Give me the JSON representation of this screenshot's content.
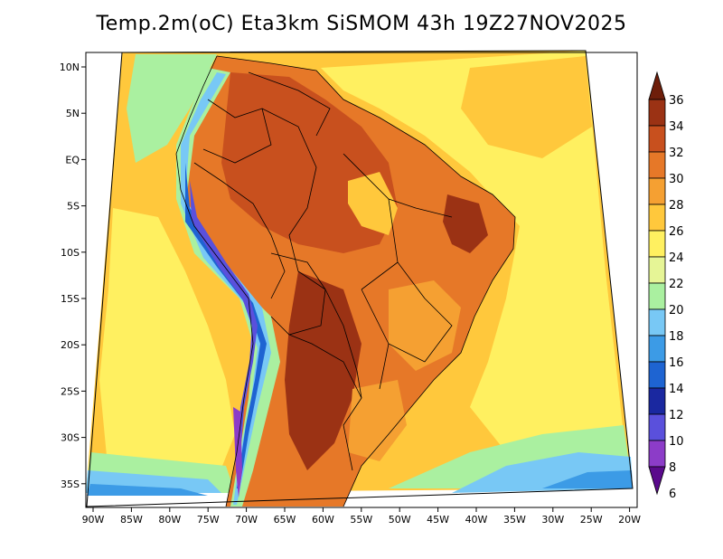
{
  "title": "Temp.2m(oC) Eta3km SiSMOM 43h 19Z27NOV2025",
  "map": {
    "variable": "2 m air temperature",
    "units": "oC",
    "lon_ticks": [
      "90W",
      "85W",
      "80W",
      "75W",
      "70W",
      "65W",
      "60W",
      "55W",
      "50W",
      "45W",
      "40W",
      "35W",
      "30W",
      "25W",
      "20W"
    ],
    "lat_ticks": [
      "10N",
      "5N",
      "EQ",
      "5S",
      "10S",
      "15S",
      "20S",
      "25S",
      "30S",
      "35S"
    ]
  },
  "colorbar": {
    "labels": [
      "36",
      "34",
      "32",
      "30",
      "28",
      "26",
      "24",
      "22",
      "20",
      "18",
      "16",
      "14",
      "12",
      "10",
      "8",
      "6"
    ],
    "colors": {
      "t6_8": "#5a0a8c",
      "t8_10": "#8c3cc8",
      "t10_12": "#5a50dc",
      "t12_14": "#1a28a0",
      "t14_16": "#1e64d2",
      "t16_18": "#3c9be6",
      "t18_20": "#78c8f5",
      "t20_22": "#aaf0a0",
      "t22_24": "#e6f596",
      "t24_26": "#fff060",
      "t26_28": "#ffc83c",
      "t28_30": "#f5a032",
      "t30_32": "#e67828",
      "t32_34": "#c8501e",
      "t34_36": "#9b3214",
      "t36_up": "#6e1e0a"
    }
  }
}
